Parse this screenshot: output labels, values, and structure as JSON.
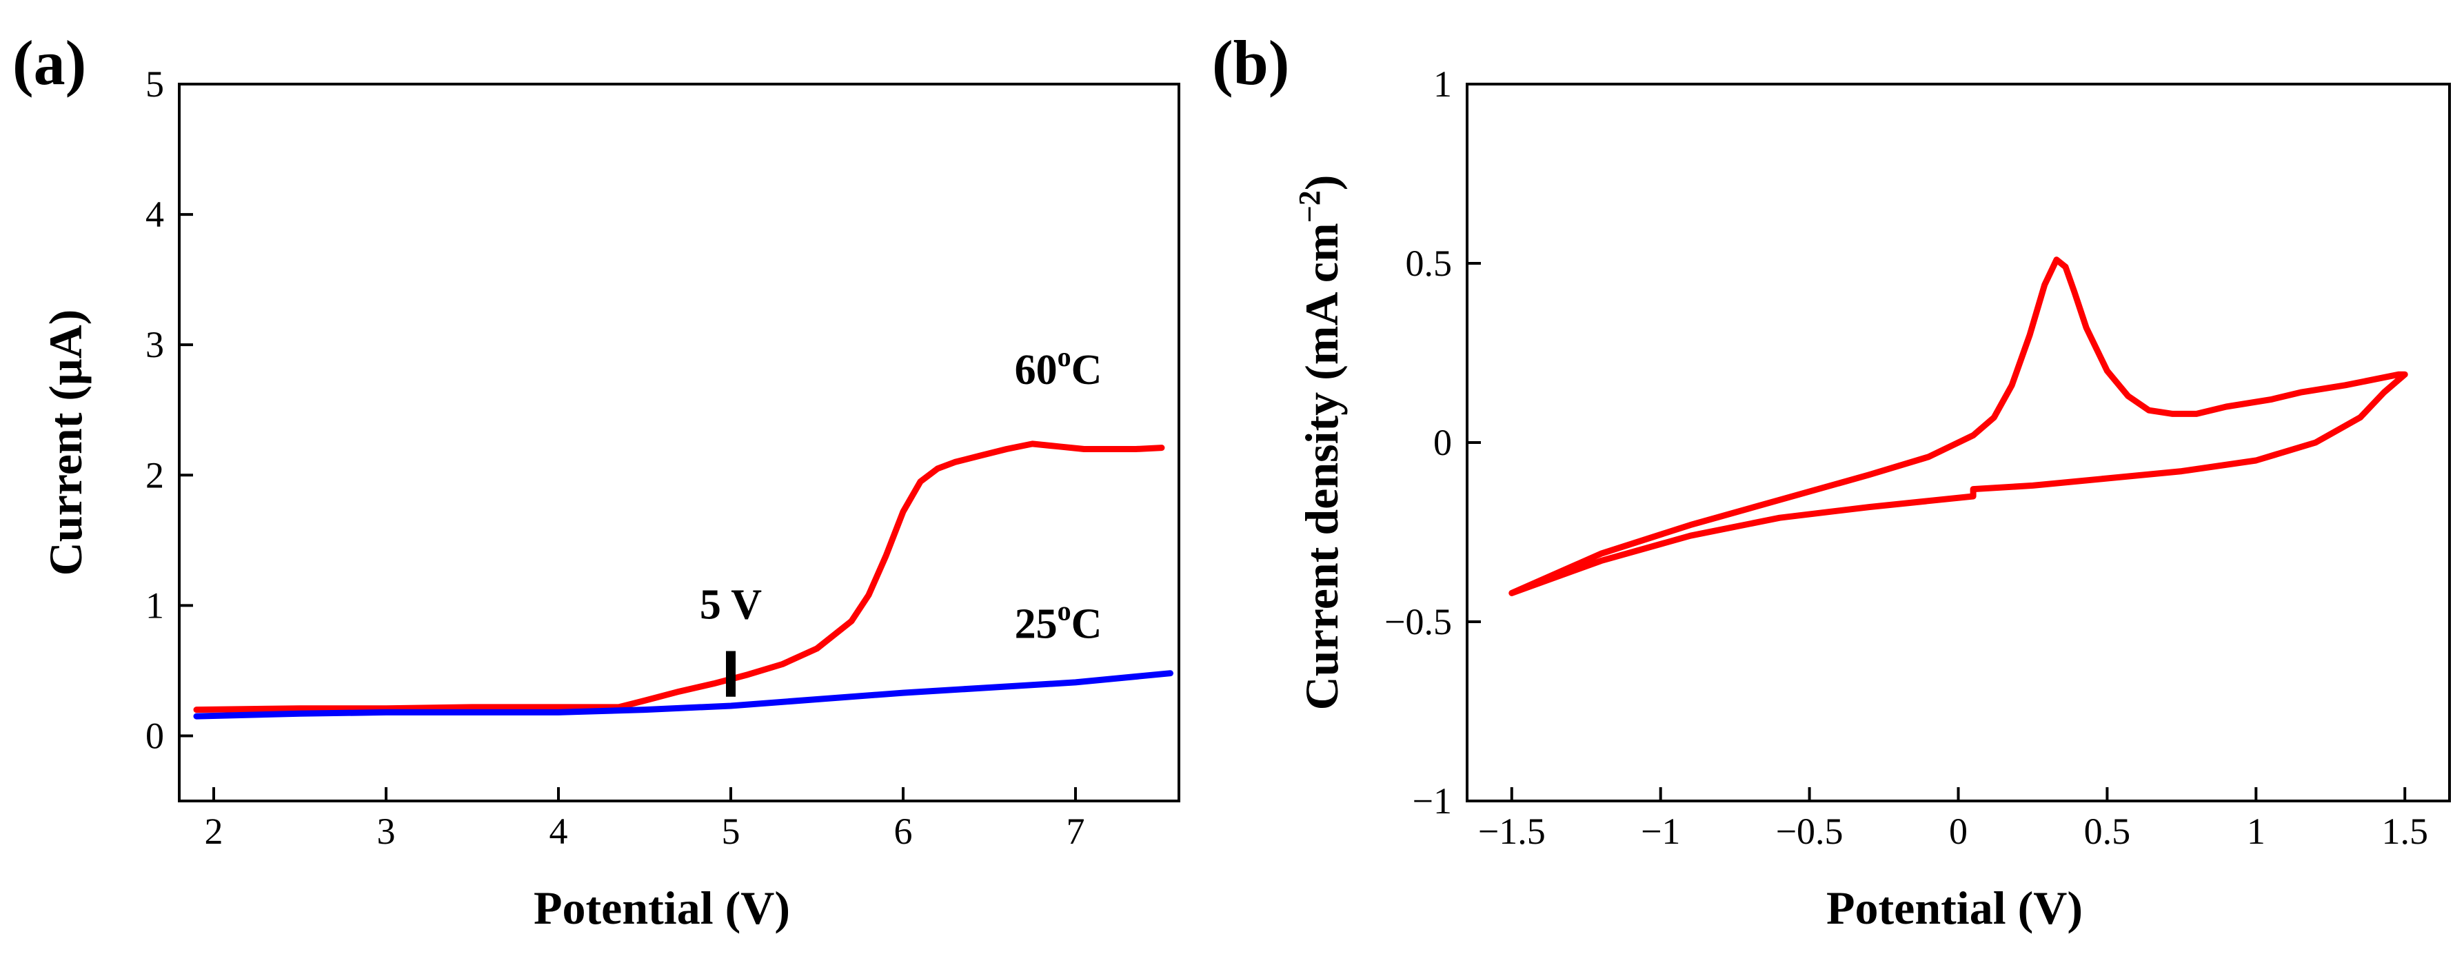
{
  "chart_data": [
    {
      "type": "line",
      "panel_label": "(a)",
      "xlabel": "Potential (V)",
      "ylabel": "Current (μA)",
      "xlim": [
        1.8,
        7.6
      ],
      "ylim": [
        -0.5,
        5
      ],
      "xticks": [
        2,
        3,
        4,
        5,
        6,
        7
      ],
      "yticks": [
        0,
        1,
        2,
        3,
        4,
        5
      ],
      "grid": false,
      "series": [
        {
          "name": "60°C",
          "color": "#ff0000",
          "points": [
            [
              1.9,
              0.2
            ],
            [
              2.5,
              0.21
            ],
            [
              3.0,
              0.21
            ],
            [
              3.5,
              0.22
            ],
            [
              4.0,
              0.22
            ],
            [
              4.35,
              0.22
            ],
            [
              4.5,
              0.27
            ],
            [
              4.7,
              0.34
            ],
            [
              4.9,
              0.4
            ],
            [
              5.1,
              0.47
            ],
            [
              5.3,
              0.55
            ],
            [
              5.5,
              0.67
            ],
            [
              5.7,
              0.88
            ],
            [
              5.8,
              1.08
            ],
            [
              5.9,
              1.38
            ],
            [
              6.0,
              1.72
            ],
            [
              6.1,
              1.95
            ],
            [
              6.2,
              2.05
            ],
            [
              6.3,
              2.1
            ],
            [
              6.45,
              2.15
            ],
            [
              6.6,
              2.2
            ],
            [
              6.75,
              2.24
            ],
            [
              6.9,
              2.22
            ],
            [
              7.05,
              2.2
            ],
            [
              7.2,
              2.2
            ],
            [
              7.35,
              2.2
            ],
            [
              7.5,
              2.21
            ]
          ]
        },
        {
          "name": "25°C",
          "color": "#0000ff",
          "points": [
            [
              1.9,
              0.15
            ],
            [
              2.5,
              0.17
            ],
            [
              3.0,
              0.18
            ],
            [
              3.5,
              0.18
            ],
            [
              4.0,
              0.18
            ],
            [
              4.5,
              0.2
            ],
            [
              5.0,
              0.23
            ],
            [
              5.5,
              0.28
            ],
            [
              6.0,
              0.33
            ],
            [
              6.5,
              0.37
            ],
            [
              7.0,
              0.41
            ],
            [
              7.55,
              0.48
            ]
          ]
        }
      ],
      "annotations": [
        {
          "text": "5 V",
          "x": 5.0,
          "y": 0.9
        },
        {
          "text_main": "60",
          "text_sup": "o",
          "text_end": "C",
          "x": 6.9,
          "y": 2.7
        },
        {
          "text_main": "25",
          "text_sup": "o",
          "text_end": "C",
          "x": 6.9,
          "y": 0.75
        }
      ],
      "marker": {
        "x": 5.0,
        "y_from": 0.3,
        "y_to": 0.65
      }
    },
    {
      "type": "line",
      "panel_label": "(b)",
      "xlabel": "Potential (V)",
      "ylabel": "Current density (mA cm",
      "ylabel_sup": "−2",
      "ylabel_end": ")",
      "xlim": [
        -1.65,
        1.65
      ],
      "ylim": [
        -1,
        1
      ],
      "xticks": [
        -1.5,
        -1,
        -0.5,
        0,
        0.5,
        1,
        1.5
      ],
      "xtick_labels": [
        "−1.5",
        "−1",
        "−0.5",
        "0",
        "0.5",
        "1",
        "1.5"
      ],
      "yticks": [
        -1,
        -0.5,
        0,
        0.5,
        1
      ],
      "ytick_labels": [
        "−1",
        "−0.5",
        "0",
        "0.5",
        "1"
      ],
      "grid": false,
      "series": [
        {
          "color": "#ff0000",
          "points": [
            [
              -1.5,
              -0.42
            ],
            [
              -1.2,
              -0.31
            ],
            [
              -0.9,
              -0.23
            ],
            [
              -0.6,
              -0.16
            ],
            [
              -0.3,
              -0.09
            ],
            [
              -0.1,
              -0.04
            ],
            [
              0.05,
              0.02
            ],
            [
              0.12,
              0.07
            ],
            [
              0.18,
              0.16
            ],
            [
              0.24,
              0.3
            ],
            [
              0.29,
              0.44
            ],
            [
              0.33,
              0.51
            ],
            [
              0.36,
              0.49
            ],
            [
              0.39,
              0.42
            ],
            [
              0.43,
              0.32
            ],
            [
              0.5,
              0.2
            ],
            [
              0.57,
              0.13
            ],
            [
              0.64,
              0.09
            ],
            [
              0.72,
              0.08
            ],
            [
              0.8,
              0.08
            ],
            [
              0.9,
              0.1
            ],
            [
              1.05,
              0.12
            ],
            [
              1.15,
              0.14
            ],
            [
              1.3,
              0.16
            ],
            [
              1.48,
              0.19
            ],
            [
              1.5,
              0.19
            ],
            [
              1.43,
              0.14
            ],
            [
              1.35,
              0.07
            ],
            [
              1.2,
              0.0
            ],
            [
              1.0,
              -0.05
            ],
            [
              0.75,
              -0.08
            ],
            [
              0.5,
              -0.1
            ],
            [
              0.25,
              -0.12
            ],
            [
              0.05,
              -0.13
            ],
            [
              0.05,
              -0.15
            ],
            [
              -0.3,
              -0.18
            ],
            [
              -0.6,
              -0.21
            ],
            [
              -0.9,
              -0.26
            ],
            [
              -1.2,
              -0.33
            ],
            [
              -1.4,
              -0.39
            ],
            [
              -1.5,
              -0.42
            ]
          ]
        }
      ]
    }
  ]
}
